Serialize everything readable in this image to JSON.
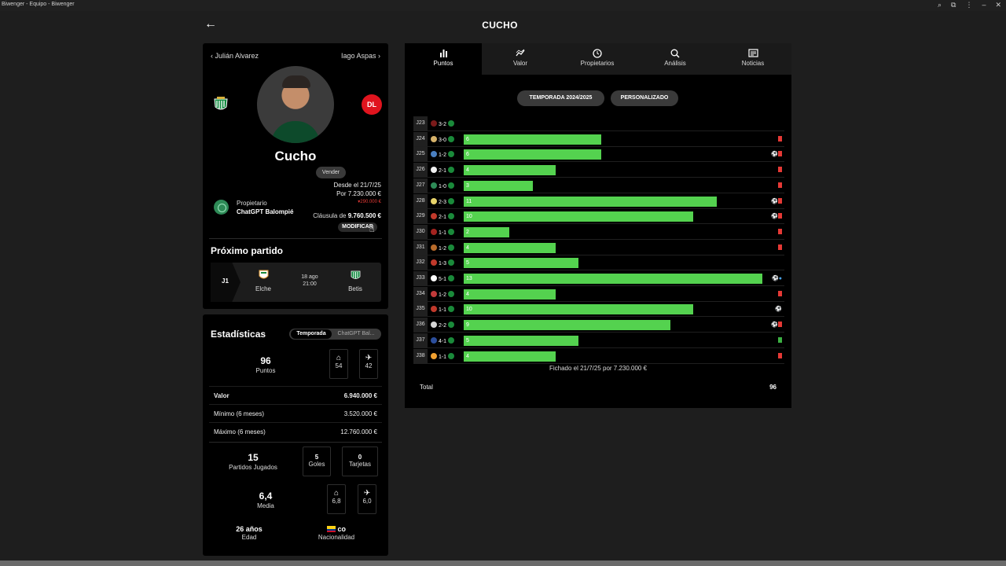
{
  "window": {
    "title": "Biwenger - Equipo - Biwenger"
  },
  "header": {
    "title": "CUCHO"
  },
  "player": {
    "prev": "Julián Alvarez",
    "next": "Iago Aspas",
    "name": "Cucho",
    "position": "DL",
    "sell_label": "Vender",
    "since": "Desde el 21/7/25",
    "price": "Por 7.230.000 €",
    "delta": "290.000 €",
    "owner_label": "Propietario",
    "owner_name": "ChatGPT Balompié",
    "clause_label": "Cláusula de",
    "clause_value": "9.760.500 €",
    "modify_label": "MODIFICAR"
  },
  "next_match": {
    "title": "Próximo partido",
    "round": "J1",
    "home": "Elche",
    "away": "Betis",
    "date": "18 ago",
    "time": "21:00"
  },
  "stats": {
    "title": "Estadísticas",
    "toggle": [
      "Temporada",
      "ChatGPT Bal..."
    ],
    "points": {
      "value": "96",
      "label": "Puntos",
      "home": "54",
      "away": "42"
    },
    "value_row": {
      "label": "Valor",
      "value": "6.940.000 €"
    },
    "min_row": {
      "label": "Mínimo (6 meses)",
      "value": "3.520.000 €"
    },
    "max_row": {
      "label": "Máximo (6 meses)",
      "value": "12.760.000 €"
    },
    "matches": {
      "value": "15",
      "label": "Partidos Jugados"
    },
    "goals": {
      "value": "5",
      "label": "Goles"
    },
    "cards": {
      "value": "0",
      "label": "Tarjetas"
    },
    "avg": {
      "value": "6,4",
      "label": "Media",
      "home": "6,8",
      "away": "6,0"
    },
    "age": {
      "value": "26 años",
      "label": "Edad"
    },
    "nationality": {
      "value": "co",
      "label": "Nacionalidad"
    }
  },
  "tabs": [
    {
      "label": "Puntos",
      "icon": "bar-chart-icon"
    },
    {
      "label": "Valor",
      "icon": "trend-icon"
    },
    {
      "label": "Propietarios",
      "icon": "clock-icon"
    },
    {
      "label": "Análisis",
      "icon": "search-icon"
    },
    {
      "label": "Noticias",
      "icon": "news-icon"
    }
  ],
  "filters": {
    "season": "TEMPORADA 2024/2025",
    "custom": "PERSONALIZADO"
  },
  "chart_data": {
    "type": "bar",
    "categories": [
      "J23",
      "J24",
      "J25",
      "J26",
      "J27",
      "J28",
      "J29",
      "J30",
      "J31",
      "J32",
      "J33",
      "J34",
      "J35",
      "J36",
      "J37",
      "J38"
    ],
    "results": [
      "3-2",
      "3-0",
      "1-2",
      "2-1",
      "1-0",
      "2-3",
      "2-1",
      "1-1",
      "1-2",
      "1-3",
      "5-1",
      "1-2",
      "1-1",
      "2-2",
      "4-1",
      "1-1"
    ],
    "values": [
      null,
      6,
      6,
      4,
      3,
      11,
      10,
      2,
      4,
      5,
      13,
      4,
      10,
      9,
      5,
      4
    ],
    "xmax": 13,
    "bar_color": "#54d24f",
    "events": [
      "",
      "card",
      "ball card",
      "card",
      "card",
      "ball card",
      "ball card",
      "card",
      "card",
      "",
      "ball star",
      "card",
      "ball",
      "ball card",
      "green",
      "card"
    ]
  },
  "footer": {
    "fichado": "Fichado el 21/7/25 por 7.230.000 €",
    "total_label": "Total",
    "total_value": "96"
  }
}
